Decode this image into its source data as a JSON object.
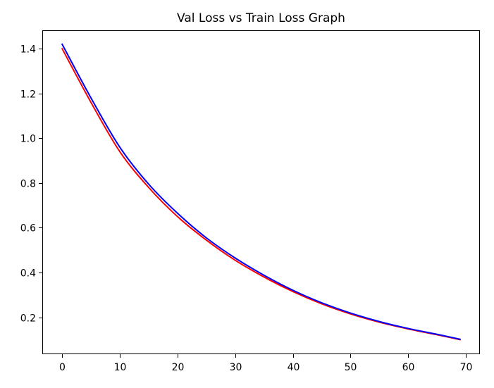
{
  "chart_data": {
    "type": "line",
    "title": "Val Loss vs Train Loss Graph",
    "xlabel": "",
    "ylabel": "",
    "xlim": [
      -3.45,
      72.45
    ],
    "ylim": [
      0.035,
      1.4825
    ],
    "xticks": [
      0,
      10,
      20,
      30,
      40,
      50,
      60,
      70
    ],
    "yticks": [
      0.2,
      0.4,
      0.6,
      0.8,
      1.0,
      1.2,
      1.4
    ],
    "ytick_labels": [
      "0.2",
      "0.4",
      "0.6",
      "0.8",
      "1.0",
      "1.2",
      "1.4"
    ],
    "xtick_labels": [
      "0",
      "10",
      "20",
      "30",
      "40",
      "50",
      "60",
      "70"
    ],
    "grid": false,
    "legend": false,
    "series": [
      {
        "color": "#ff0000",
        "x": [
          0,
          5,
          10,
          15,
          20,
          25,
          30,
          35,
          40,
          45,
          50,
          55,
          60,
          65,
          69
        ],
        "y": [
          1.4,
          1.16,
          0.94,
          0.78,
          0.65,
          0.545,
          0.455,
          0.38,
          0.315,
          0.26,
          0.215,
          0.178,
          0.148,
          0.122,
          0.1
        ]
      },
      {
        "color": "#0000ff",
        "x": [
          0,
          5,
          10,
          15,
          20,
          25,
          30,
          35,
          40,
          45,
          50,
          55,
          60,
          65,
          69
        ],
        "y": [
          1.42,
          1.18,
          0.96,
          0.795,
          0.665,
          0.555,
          0.465,
          0.388,
          0.321,
          0.265,
          0.219,
          0.181,
          0.15,
          0.124,
          0.102
        ]
      }
    ]
  }
}
